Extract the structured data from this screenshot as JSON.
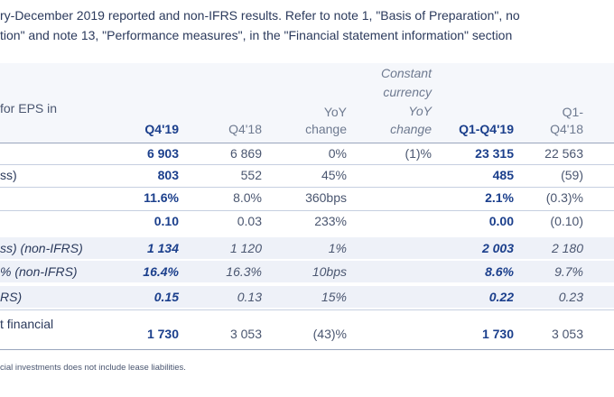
{
  "intro": {
    "line1": "ry-December 2019 reported and non-IFRS results. Refer to note 1, \"Basis of Preparation\", no",
    "line2": "tion\" and note 13, \"Performance measures\", in the \"Financial statement information\" section"
  },
  "header": {
    "row_label": "for EPS in",
    "q419": "Q4'19",
    "q418": "Q4'18",
    "yoy_line1": "YoY",
    "yoy_line2": "change",
    "cc_line1": "Constant",
    "cc_line2": "currency",
    "cc_line3": "YoY",
    "cc_line4": "change",
    "q1q419": "Q1-Q4'19",
    "q1q418_line1": "Q1-",
    "q1q418_line2": "Q4'18"
  },
  "rows": [
    {
      "label": "",
      "q419": "6 903",
      "q418": "6 869",
      "yoy": "0%",
      "cc": "(1)%",
      "fy19": "23 315",
      "fy18": "22 563",
      "italic": false,
      "shade": false
    },
    {
      "label": "ss)",
      "q419": "803",
      "q418": "552",
      "yoy": "45%",
      "cc": "",
      "fy19": "485",
      "fy18": "(59)",
      "italic": false,
      "shade": false
    },
    {
      "label": "",
      "q419": "11.6%",
      "q418": "8.0%",
      "yoy": "360bps",
      "cc": "",
      "fy19": "2.1%",
      "fy18": "(0.3)%",
      "italic": false,
      "shade": false
    },
    {
      "label": "",
      "q419": "0.10",
      "q418": "0.03",
      "yoy": "233%",
      "cc": "",
      "fy19": "0.00",
      "fy18": "(0.10)",
      "italic": false,
      "shade": false
    },
    {
      "label": "ss) (non-IFRS)",
      "q419": "1 134",
      "q418": "1 120",
      "yoy": "1%",
      "cc": "",
      "fy19": "2 003",
      "fy18": "2 180",
      "italic": true,
      "shade": true
    },
    {
      "label": "% (non-IFRS)",
      "q419": "16.4%",
      "q418": "16.3%",
      "yoy": "10bps",
      "cc": "",
      "fy19": "8.6%",
      "fy18": "9.7%",
      "italic": true,
      "shade": true
    },
    {
      "label": "RS)",
      "q419": "0.15",
      "q418": "0.13",
      "yoy": "15%",
      "cc": "",
      "fy19": "0.22",
      "fy18": "0.23",
      "italic": true,
      "shade": true
    }
  ],
  "last_row": {
    "label_line1": "t financial",
    "label_line2": "",
    "q419": "1 730",
    "q418": "3 053",
    "yoy": "(43)%",
    "fy19": "1 730",
    "fy18": "3 053"
  },
  "footnote": "cial investments does not include lease liabilities."
}
